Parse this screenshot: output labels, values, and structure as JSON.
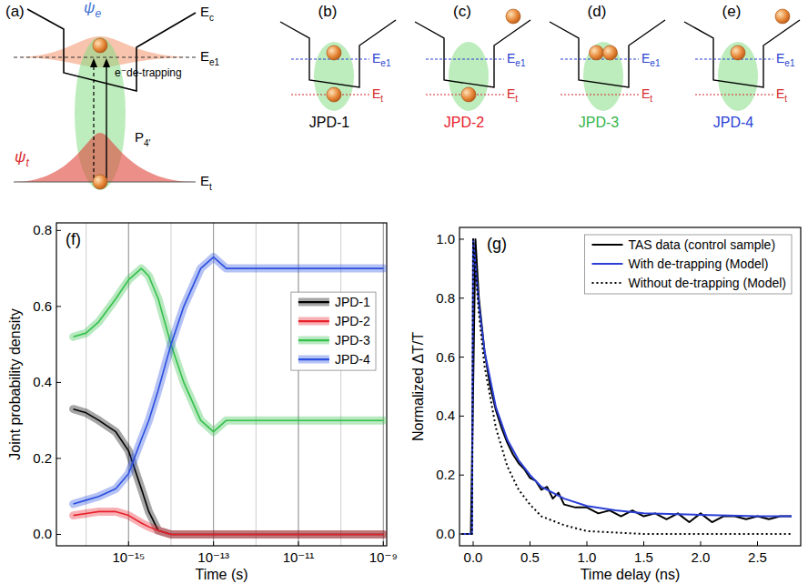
{
  "diagrams": {
    "panel_a": {
      "letter": "(a)",
      "psi_e": {
        "text": "ψ",
        "sub": "e"
      },
      "psi_t": {
        "text": "ψ",
        "sub": "t"
      },
      "conduction_band": {
        "text": "E",
        "sub": "c"
      },
      "level": {
        "text": "E",
        "sub": "e1"
      },
      "trap": {
        "text": "E",
        "sub": "t"
      },
      "transition": {
        "text": "P",
        "sub": "4'"
      },
      "process": "e⁻de-trapping"
    },
    "level": {
      "text": "E",
      "sub": "e1"
    },
    "trap": {
      "text": "E",
      "sub": "t"
    },
    "states": [
      {
        "letter": "(b)",
        "name": "JPD-1",
        "color": "#000000",
        "electrons": {
          "level": 1,
          "trap": 1,
          "free": 0
        }
      },
      {
        "letter": "(c)",
        "name": "JPD-2",
        "color": "#e8202a",
        "electrons": {
          "level": 0,
          "trap": 1,
          "free": 1
        }
      },
      {
        "letter": "(d)",
        "name": "JPD-3",
        "color": "#33b54a",
        "electrons": {
          "level": 2,
          "trap": 0,
          "free": 0
        }
      },
      {
        "letter": "(e)",
        "name": "JPD-4",
        "color": "#2b3fd6",
        "electrons": {
          "level": 1,
          "trap": 0,
          "free": 1
        }
      }
    ]
  },
  "chart_data": [
    {
      "type": "line",
      "title": "(f)",
      "x_label": "Time (s)",
      "y_label": "Joint probability density",
      "log": "x",
      "grid": "x",
      "legend": "right",
      "xlim": [
        2e-17,
        1.2e-09
      ],
      "xticks": [
        {
          "value": 1e-15,
          "label": "10⁻¹⁵"
        },
        {
          "value": 1e-13,
          "label": "10⁻¹³"
        },
        {
          "value": 1e-11,
          "label": "10⁻¹¹"
        },
        {
          "value": 1e-09,
          "label": "10⁻⁹"
        }
      ],
      "ylim": [
        -0.03,
        0.82
      ],
      "yticks": [
        {
          "value": 0,
          "label": "0.0"
        },
        0.2,
        0.4,
        0.6,
        0.8
      ],
      "x": [
        5e-17,
        1e-16,
        2e-16,
        5e-16,
        1e-15,
        2e-15,
        3e-15,
        5e-15,
        1e-14,
        2e-14,
        5e-14,
        1e-13,
        2e-13,
        5e-13,
        1e-12,
        1e-11,
        1e-10,
        1e-09
      ],
      "series": [
        {
          "name": "JPD-1",
          "color": "#000000",
          "line_style": "band",
          "values": [
            0.33,
            0.32,
            0.3,
            0.27,
            0.22,
            0.12,
            0.06,
            0.01,
            0,
            0,
            0,
            0,
            0,
            0,
            0,
            0,
            0,
            0
          ]
        },
        {
          "name": "JPD-2",
          "color": "#e8202a",
          "line_style": "band",
          "values": [
            0.05,
            0.055,
            0.06,
            0.06,
            0.05,
            0.03,
            0.02,
            0.01,
            0,
            0,
            0,
            0,
            0,
            0,
            0,
            0,
            0,
            0
          ]
        },
        {
          "name": "JPD-3",
          "color": "#33c04a",
          "line_style": "band",
          "values": [
            0.52,
            0.53,
            0.56,
            0.62,
            0.67,
            0.7,
            0.68,
            0.62,
            0.5,
            0.4,
            0.3,
            0.27,
            0.3,
            0.3,
            0.3,
            0.3,
            0.3,
            0.3
          ]
        },
        {
          "name": "JPD-4",
          "color": "#2b4fe0",
          "line_style": "band",
          "values": [
            0.08,
            0.09,
            0.1,
            0.12,
            0.16,
            0.25,
            0.3,
            0.38,
            0.5,
            0.6,
            0.7,
            0.73,
            0.7,
            0.7,
            0.7,
            0.7,
            0.7,
            0.7
          ]
        }
      ]
    },
    {
      "type": "line",
      "title": "(g)",
      "x_label": "Time delay (ns)",
      "y_label": "Normalized ΔT/T",
      "grid": false,
      "legend": "upper right",
      "xlim": [
        -0.12,
        2.88
      ],
      "xticks": [
        {
          "value": 0,
          "label": "0.0"
        },
        0.5,
        {
          "value": 1,
          "label": "1.0"
        },
        1.5,
        {
          "value": 2,
          "label": "2.0"
        },
        2.5
      ],
      "ylim": [
        -0.04,
        1.04
      ],
      "yticks": [
        {
          "value": 0,
          "label": "0.0"
        },
        0.2,
        0.4,
        0.6,
        0.8,
        {
          "value": 1,
          "label": "1.0"
        }
      ],
      "series": [
        {
          "name": "TAS data (control sample)",
          "color": "#000000",
          "line_style": "solid",
          "x": [
            -0.1,
            -0.02,
            0,
            0.02,
            0.05,
            0.1,
            0.15,
            0.2,
            0.25,
            0.3,
            0.35,
            0.4,
            0.45,
            0.5,
            0.55,
            0.6,
            0.65,
            0.7,
            0.75,
            0.8,
            0.9,
            1.0,
            1.1,
            1.2,
            1.3,
            1.4,
            1.5,
            1.6,
            1.7,
            1.8,
            1.9,
            2.0,
            2.1,
            2.2,
            2.3,
            2.4,
            2.5,
            2.6,
            2.7,
            2.8
          ],
          "values": [
            0,
            0,
            0.5,
            1.0,
            0.8,
            0.62,
            0.5,
            0.42,
            0.36,
            0.31,
            0.27,
            0.24,
            0.22,
            0.19,
            0.18,
            0.15,
            0.16,
            0.12,
            0.14,
            0.1,
            0.09,
            0.09,
            0.07,
            0.08,
            0.06,
            0.08,
            0.06,
            0.07,
            0.05,
            0.07,
            0.04,
            0.07,
            0.04,
            0.06,
            0.06,
            0.05,
            0.06,
            0.05,
            0.06,
            0.06
          ]
        },
        {
          "name": "With de-trapping (Model)",
          "color": "#2b3fd6",
          "line_style": "solid",
          "x": [
            -0.1,
            -0.01,
            0,
            0.05,
            0.1,
            0.2,
            0.3,
            0.4,
            0.5,
            0.6,
            0.8,
            1.0,
            1.25,
            1.5,
            2.0,
            2.5,
            2.8
          ],
          "values": [
            0,
            0,
            1.0,
            0.78,
            0.62,
            0.43,
            0.32,
            0.25,
            0.2,
            0.16,
            0.12,
            0.095,
            0.08,
            0.07,
            0.065,
            0.06,
            0.06
          ]
        },
        {
          "name": "Without de-trapping (Model)",
          "color": "#000000",
          "line_style": "dotted",
          "x": [
            -0.1,
            -0.01,
            0,
            0.05,
            0.1,
            0.2,
            0.3,
            0.4,
            0.5,
            0.6,
            0.8,
            1.0,
            1.25,
            1.5,
            2.0,
            2.8
          ],
          "values": [
            0,
            0,
            1.0,
            0.75,
            0.57,
            0.36,
            0.23,
            0.15,
            0.1,
            0.06,
            0.03,
            0.01,
            0.005,
            0,
            0,
            0
          ]
        }
      ]
    }
  ]
}
